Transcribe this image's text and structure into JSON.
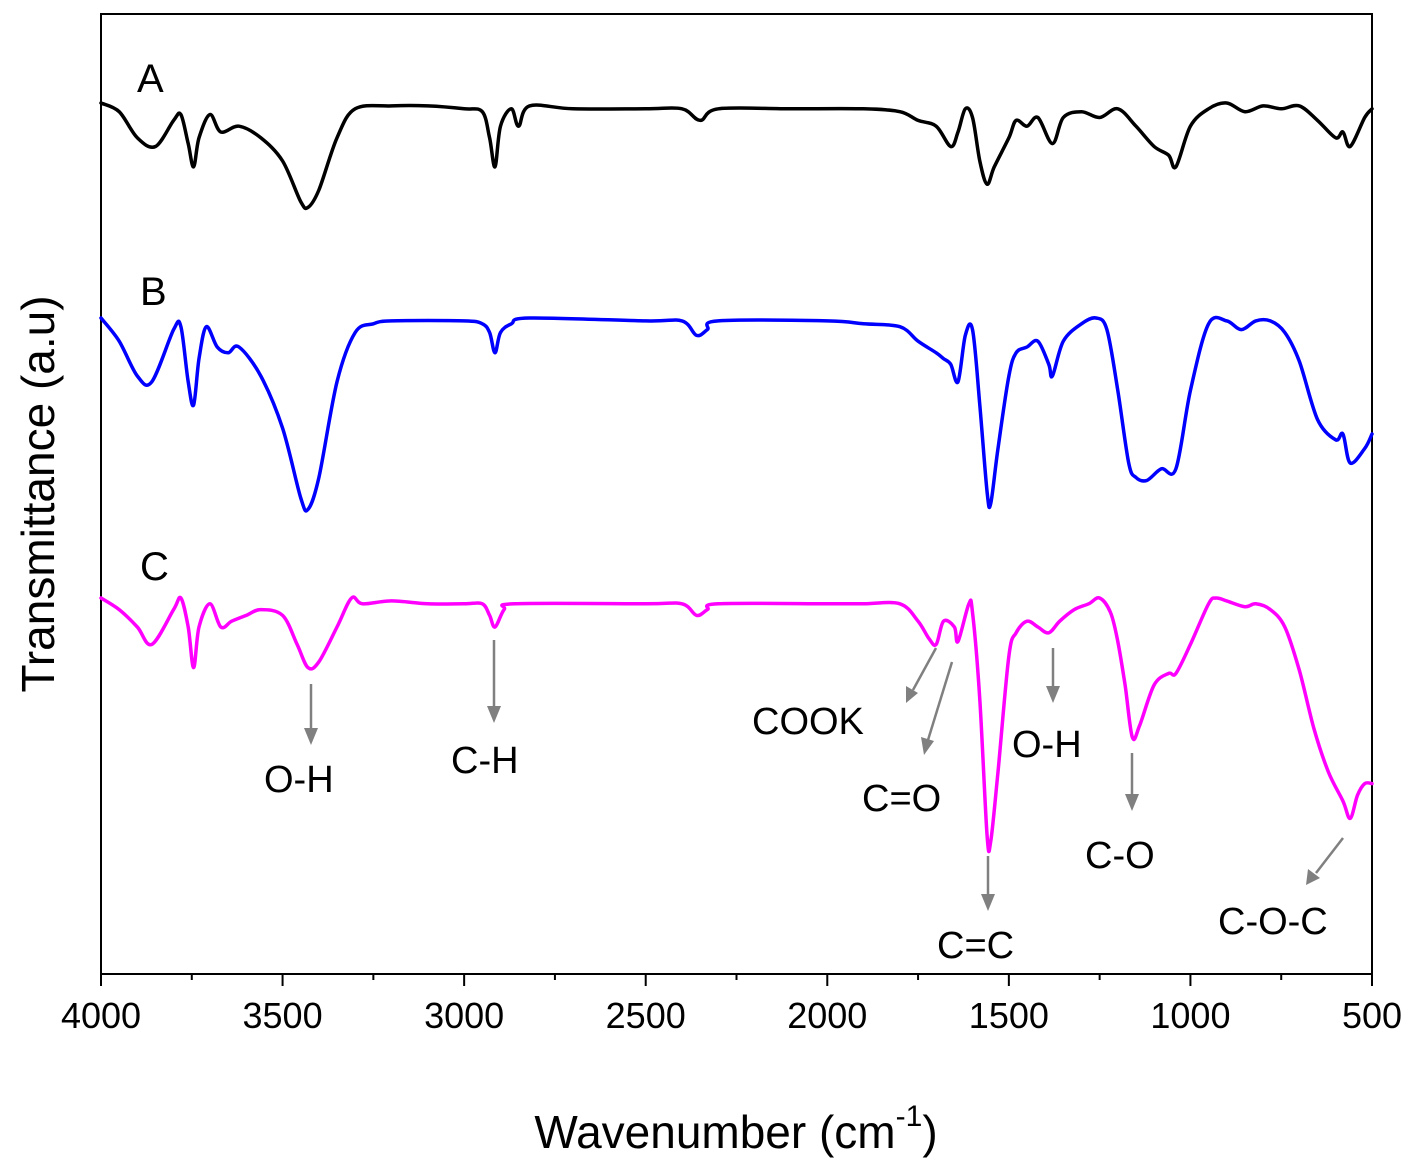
{
  "chart_data": {
    "type": "line",
    "title": "",
    "xlabel": "Wavenumber (cm",
    "xlabel_sup": "-1",
    "xlabel_close": ")",
    "ylabel": "Transmittance (a.u)",
    "xlim": [
      4000,
      500
    ],
    "x_ticks": [
      4000,
      3500,
      3000,
      2500,
      2000,
      1500,
      1000,
      500
    ],
    "y_ticks_visible": false,
    "series": [
      {
        "name": "A",
        "color": "#000000",
        "points": [
          [
            4000,
            0.0
          ],
          [
            3950,
            0.03
          ],
          [
            3900,
            0.12
          ],
          [
            3850,
            0.15
          ],
          [
            3800,
            0.06
          ],
          [
            3780,
            0.04
          ],
          [
            3760,
            0.14
          ],
          [
            3745,
            0.22
          ],
          [
            3730,
            0.12
          ],
          [
            3700,
            0.04
          ],
          [
            3670,
            0.1
          ],
          [
            3620,
            0.08
          ],
          [
            3560,
            0.12
          ],
          [
            3500,
            0.2
          ],
          [
            3450,
            0.34
          ],
          [
            3430,
            0.36
          ],
          [
            3400,
            0.3
          ],
          [
            3350,
            0.12
          ],
          [
            3300,
            0.02
          ],
          [
            3200,
            0.01
          ],
          [
            3100,
            0.01
          ],
          [
            3000,
            0.02
          ],
          [
            2950,
            0.03
          ],
          [
            2930,
            0.12
          ],
          [
            2915,
            0.22
          ],
          [
            2900,
            0.08
          ],
          [
            2870,
            0.02
          ],
          [
            2850,
            0.08
          ],
          [
            2820,
            0.01
          ],
          [
            2700,
            0.02
          ],
          [
            2500,
            0.02
          ],
          [
            2400,
            0.02
          ],
          [
            2350,
            0.06
          ],
          [
            2300,
            0.02
          ],
          [
            2100,
            0.02
          ],
          [
            1900,
            0.02
          ],
          [
            1800,
            0.03
          ],
          [
            1750,
            0.06
          ],
          [
            1700,
            0.08
          ],
          [
            1660,
            0.15
          ],
          [
            1640,
            0.1
          ],
          [
            1620,
            0.02
          ],
          [
            1600,
            0.05
          ],
          [
            1580,
            0.2
          ],
          [
            1560,
            0.28
          ],
          [
            1540,
            0.22
          ],
          [
            1500,
            0.12
          ],
          [
            1480,
            0.06
          ],
          [
            1450,
            0.08
          ],
          [
            1420,
            0.05
          ],
          [
            1380,
            0.14
          ],
          [
            1350,
            0.05
          ],
          [
            1300,
            0.03
          ],
          [
            1250,
            0.05
          ],
          [
            1200,
            0.02
          ],
          [
            1150,
            0.08
          ],
          [
            1100,
            0.15
          ],
          [
            1060,
            0.18
          ],
          [
            1040,
            0.22
          ],
          [
            1000,
            0.08
          ],
          [
            950,
            0.02
          ],
          [
            900,
            0.0
          ],
          [
            850,
            0.03
          ],
          [
            800,
            0.01
          ],
          [
            750,
            0.02
          ],
          [
            700,
            0.01
          ],
          [
            650,
            0.06
          ],
          [
            600,
            0.12
          ],
          [
            580,
            0.1
          ],
          [
            560,
            0.15
          ],
          [
            520,
            0.05
          ],
          [
            500,
            0.02
          ]
        ]
      },
      {
        "name": "B",
        "color": "#0000ff",
        "points": [
          [
            4000,
            0.0
          ],
          [
            3950,
            0.08
          ],
          [
            3900,
            0.2
          ],
          [
            3860,
            0.22
          ],
          [
            3800,
            0.04
          ],
          [
            3780,
            0.03
          ],
          [
            3760,
            0.22
          ],
          [
            3745,
            0.3
          ],
          [
            3730,
            0.14
          ],
          [
            3710,
            0.03
          ],
          [
            3680,
            0.1
          ],
          [
            3650,
            0.12
          ],
          [
            3620,
            0.1
          ],
          [
            3560,
            0.2
          ],
          [
            3500,
            0.38
          ],
          [
            3450,
            0.62
          ],
          [
            3430,
            0.66
          ],
          [
            3400,
            0.55
          ],
          [
            3350,
            0.22
          ],
          [
            3300,
            0.05
          ],
          [
            3250,
            0.02
          ],
          [
            3200,
            0.01
          ],
          [
            3000,
            0.01
          ],
          [
            2950,
            0.02
          ],
          [
            2930,
            0.05
          ],
          [
            2915,
            0.12
          ],
          [
            2900,
            0.05
          ],
          [
            2870,
            0.02
          ],
          [
            2820,
            0.0
          ],
          [
            2500,
            0.01
          ],
          [
            2400,
            0.01
          ],
          [
            2360,
            0.06
          ],
          [
            2330,
            0.04
          ],
          [
            2300,
            0.01
          ],
          [
            2000,
            0.01
          ],
          [
            1900,
            0.02
          ],
          [
            1800,
            0.03
          ],
          [
            1750,
            0.08
          ],
          [
            1700,
            0.12
          ],
          [
            1680,
            0.14
          ],
          [
            1660,
            0.16
          ],
          [
            1640,
            0.22
          ],
          [
            1620,
            0.06
          ],
          [
            1600,
            0.04
          ],
          [
            1580,
            0.3
          ],
          [
            1560,
            0.6
          ],
          [
            1550,
            0.64
          ],
          [
            1530,
            0.45
          ],
          [
            1500,
            0.2
          ],
          [
            1480,
            0.12
          ],
          [
            1450,
            0.1
          ],
          [
            1420,
            0.08
          ],
          [
            1390,
            0.16
          ],
          [
            1380,
            0.2
          ],
          [
            1350,
            0.08
          ],
          [
            1300,
            0.02
          ],
          [
            1260,
            0.0
          ],
          [
            1230,
            0.04
          ],
          [
            1200,
            0.25
          ],
          [
            1170,
            0.5
          ],
          [
            1150,
            0.55
          ],
          [
            1120,
            0.56
          ],
          [
            1080,
            0.52
          ],
          [
            1040,
            0.52
          ],
          [
            1000,
            0.25
          ],
          [
            950,
            0.02
          ],
          [
            900,
            0.01
          ],
          [
            860,
            0.04
          ],
          [
            820,
            0.01
          ],
          [
            780,
            0.01
          ],
          [
            740,
            0.05
          ],
          [
            700,
            0.15
          ],
          [
            650,
            0.35
          ],
          [
            600,
            0.42
          ],
          [
            580,
            0.4
          ],
          [
            560,
            0.5
          ],
          [
            520,
            0.45
          ],
          [
            500,
            0.4
          ]
        ]
      },
      {
        "name": "C",
        "color": "#ff00ff",
        "points": [
          [
            4000,
            0.0
          ],
          [
            3950,
            0.04
          ],
          [
            3900,
            0.1
          ],
          [
            3860,
            0.16
          ],
          [
            3800,
            0.04
          ],
          [
            3780,
            0.0
          ],
          [
            3760,
            0.1
          ],
          [
            3745,
            0.24
          ],
          [
            3730,
            0.1
          ],
          [
            3700,
            0.02
          ],
          [
            3670,
            0.1
          ],
          [
            3640,
            0.08
          ],
          [
            3600,
            0.06
          ],
          [
            3560,
            0.04
          ],
          [
            3500,
            0.06
          ],
          [
            3460,
            0.16
          ],
          [
            3430,
            0.24
          ],
          [
            3400,
            0.22
          ],
          [
            3350,
            0.1
          ],
          [
            3310,
            0.0
          ],
          [
            3280,
            0.02
          ],
          [
            3200,
            0.01
          ],
          [
            3100,
            0.02
          ],
          [
            3000,
            0.02
          ],
          [
            2950,
            0.02
          ],
          [
            2930,
            0.06
          ],
          [
            2915,
            0.1
          ],
          [
            2890,
            0.04
          ],
          [
            2860,
            0.02
          ],
          [
            2500,
            0.02
          ],
          [
            2400,
            0.02
          ],
          [
            2360,
            0.06
          ],
          [
            2330,
            0.04
          ],
          [
            2300,
            0.02
          ],
          [
            2000,
            0.02
          ],
          [
            1900,
            0.02
          ],
          [
            1800,
            0.02
          ],
          [
            1750,
            0.08
          ],
          [
            1720,
            0.14
          ],
          [
            1700,
            0.16
          ],
          [
            1680,
            0.08
          ],
          [
            1650,
            0.1
          ],
          [
            1640,
            0.15
          ],
          [
            1610,
            0.02
          ],
          [
            1600,
            0.05
          ],
          [
            1580,
            0.35
          ],
          [
            1560,
            0.82
          ],
          [
            1550,
            0.84
          ],
          [
            1530,
            0.6
          ],
          [
            1500,
            0.2
          ],
          [
            1480,
            0.12
          ],
          [
            1450,
            0.08
          ],
          [
            1420,
            0.1
          ],
          [
            1390,
            0.12
          ],
          [
            1360,
            0.08
          ],
          [
            1320,
            0.04
          ],
          [
            1280,
            0.02
          ],
          [
            1250,
            0.0
          ],
          [
            1220,
            0.05
          ],
          [
            1200,
            0.15
          ],
          [
            1180,
            0.3
          ],
          [
            1160,
            0.48
          ],
          [
            1140,
            0.44
          ],
          [
            1100,
            0.3
          ],
          [
            1060,
            0.26
          ],
          [
            1040,
            0.26
          ],
          [
            1000,
            0.16
          ],
          [
            950,
            0.02
          ],
          [
            930,
            0.0
          ],
          [
            900,
            0.01
          ],
          [
            850,
            0.03
          ],
          [
            820,
            0.02
          ],
          [
            780,
            0.04
          ],
          [
            740,
            0.1
          ],
          [
            700,
            0.25
          ],
          [
            660,
            0.45
          ],
          [
            620,
            0.6
          ],
          [
            580,
            0.7
          ],
          [
            560,
            0.76
          ],
          [
            540,
            0.68
          ],
          [
            520,
            0.64
          ],
          [
            500,
            0.64
          ]
        ]
      }
    ],
    "curve_labels": [
      "A",
      "B",
      "C"
    ],
    "annotations": [
      {
        "text": "O-H",
        "wavenumber": 3430
      },
      {
        "text": "C-H",
        "wavenumber": 2915
      },
      {
        "text": "COOK",
        "wavenumber": 1700
      },
      {
        "text": "C=O",
        "wavenumber": 1640
      },
      {
        "text": "C=C",
        "wavenumber": 1550
      },
      {
        "text": "O-H",
        "wavenumber": 1380
      },
      {
        "text": "C-O",
        "wavenumber": 1160
      },
      {
        "text": "C-O-C",
        "wavenumber": 560
      }
    ]
  }
}
